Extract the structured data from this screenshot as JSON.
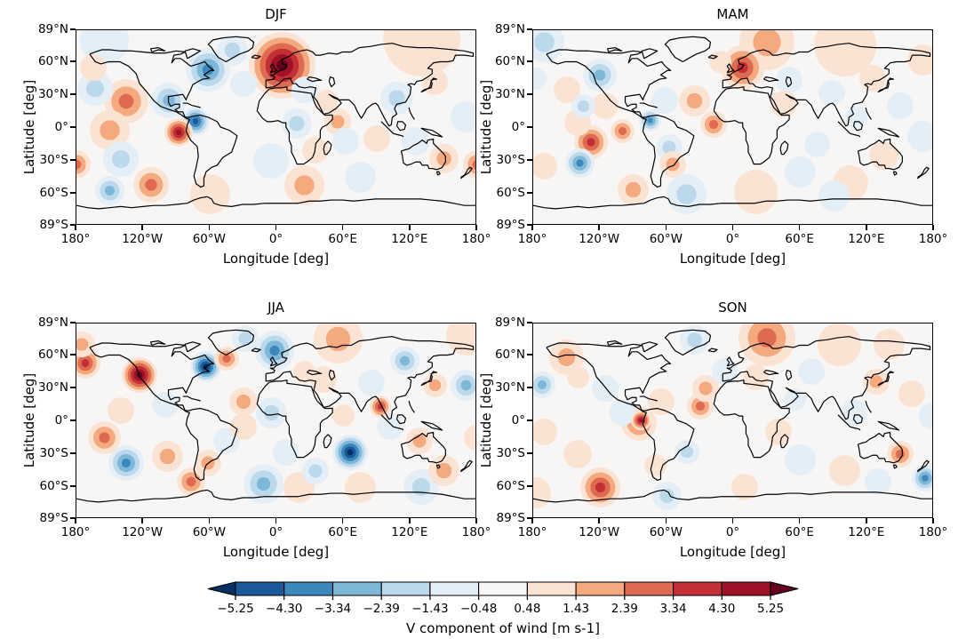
{
  "figure": {
    "panels": [
      {
        "title": "DJF"
      },
      {
        "title": "MAM"
      },
      {
        "title": "JJA"
      },
      {
        "title": "SON"
      }
    ],
    "xlabel": "Longitude [deg]",
    "ylabel": "Latitude [deg]",
    "lon_tick_labels": [
      "180°",
      "120°W",
      "60°W",
      "0°",
      "60°E",
      "120°E",
      "180°"
    ],
    "lat_tick_labels": [
      "89°N",
      "60°N",
      "30°N",
      "0°",
      "30°S",
      "60°S",
      "89°S"
    ],
    "colorbar": {
      "label": "V component of wind [m s-1]",
      "tick_labels": [
        "−5.25",
        "−4.30",
        "−3.34",
        "−2.39",
        "−1.43",
        "−0.48",
        "0.48",
        "1.43",
        "2.39",
        "3.34",
        "4.30",
        "5.25"
      ]
    }
  },
  "chart_data": {
    "type": "heatmap",
    "subtype": "filled-contour world maps, 2x2 seasonal panels, equirectangular (lat-lon) projection with coastlines",
    "xlabel": "Longitude [deg]",
    "ylabel": "Latitude [deg]",
    "xlim": [
      -180,
      180
    ],
    "ylim": [
      -89,
      89
    ],
    "x_ticks_deg": [
      -180,
      -120,
      -60,
      0,
      60,
      120,
      180
    ],
    "y_ticks_deg": [
      89,
      60,
      30,
      0,
      -30,
      -60,
      -89
    ],
    "colorbar": {
      "label": "V component of wind [m s-1]",
      "units": "m s-1",
      "orientation": "horizontal",
      "extend": "both",
      "tick_values": [
        -5.25,
        -4.3,
        -3.34,
        -2.39,
        -1.43,
        -0.48,
        0.48,
        1.43,
        2.39,
        3.34,
        4.3,
        5.25
      ],
      "segment_colors": [
        "#1a5a9b",
        "#3c88bd",
        "#7eb8d9",
        "#bcd9eb",
        "#e3eef6",
        "#f8f6f4",
        "#fbe3d4",
        "#f5a97f",
        "#dd6a51",
        "#c22f35",
        "#9e1127"
      ],
      "extend_low_color": "#053061",
      "extend_high_color": "#67001f"
    },
    "colors": {
      "extend_low": "#053061",
      "blues": [
        "#e3eef6",
        "#bcd9eb",
        "#7eb8d9",
        "#3c88bd",
        "#1a5a9b"
      ],
      "white": "#f8f6f4",
      "reds": [
        "#fbe3d4",
        "#f5a97f",
        "#dd6a51",
        "#c22f35",
        "#9e1127"
      ],
      "extend_high": "#67001f",
      "coastline": "#000000"
    },
    "anomaly_encoding": "each anomaly is [lon_deg, lat_deg, radius_deg, level]; level sign: positive = red (southerly wind anomaly), negative = blue (northerly); |level| 1..6 = colorbar band strength from ±0.48 out past ±5.25 m s-1",
    "panels": [
      {
        "season": "DJF",
        "anomalies": [
          [
            5,
            57,
            30,
            6
          ],
          [
            -62,
            53,
            20,
            -4
          ],
          [
            -40,
            71,
            14,
            -2
          ],
          [
            -97,
            25,
            16,
            -3
          ],
          [
            -73,
            6,
            13,
            -5
          ],
          [
            -88,
            -4,
            13,
            5
          ],
          [
            -135,
            24,
            20,
            3
          ],
          [
            -163,
            36,
            16,
            -2
          ],
          [
            -150,
            -2,
            18,
            2
          ],
          [
            -140,
            -28,
            16,
            -2
          ],
          [
            -113,
            -52,
            16,
            3
          ],
          [
            -150,
            -57,
            13,
            -3
          ],
          [
            -60,
            -60,
            18,
            1
          ],
          [
            25,
            -52,
            18,
            2
          ],
          [
            -5,
            -30,
            16,
            -1
          ],
          [
            18,
            4,
            14,
            -2
          ],
          [
            55,
            6,
            12,
            2
          ],
          [
            62,
            -12,
            12,
            -1
          ],
          [
            108,
            27,
            15,
            -2
          ],
          [
            90,
            -10,
            12,
            1
          ],
          [
            125,
            -12,
            13,
            -1
          ],
          [
            150,
            -28,
            13,
            2
          ],
          [
            180,
            -33,
            13,
            3
          ],
          [
            -180,
            -33,
            13,
            3
          ],
          [
            142,
            42,
            12,
            1
          ],
          [
            130,
            82,
            35,
            1
          ],
          [
            -155,
            80,
            22,
            -1
          ],
          [
            35,
            -20,
            12,
            1
          ],
          [
            75,
            -45,
            14,
            -1
          ],
          [
            -30,
            40,
            12,
            -1
          ],
          [
            25,
            35,
            12,
            -1
          ],
          [
            45,
            25,
            10,
            1
          ],
          [
            170,
            10,
            14,
            -1
          ],
          [
            -165,
            55,
            12,
            1
          ]
        ]
      },
      {
        "season": "MAM",
        "anomalies": [
          [
            8,
            55,
            20,
            4
          ],
          [
            -120,
            48,
            15,
            -3
          ],
          [
            -75,
            7,
            10,
            -4
          ],
          [
            -18,
            3,
            12,
            3
          ],
          [
            -128,
            -13,
            15,
            4
          ],
          [
            -138,
            -32,
            13,
            -4
          ],
          [
            -100,
            -3,
            11,
            3
          ],
          [
            -58,
            -18,
            12,
            -2
          ],
          [
            -55,
            -33,
            12,
            2
          ],
          [
            -42,
            -60,
            18,
            -2
          ],
          [
            -90,
            -56,
            14,
            2
          ],
          [
            30,
            78,
            25,
            2
          ],
          [
            100,
            75,
            28,
            1
          ],
          [
            -170,
            78,
            18,
            -2
          ],
          [
            50,
            44,
            12,
            -1
          ],
          [
            45,
            22,
            12,
            1
          ],
          [
            88,
            32,
            12,
            -1
          ],
          [
            125,
            45,
            12,
            1
          ],
          [
            -35,
            25,
            14,
            2
          ],
          [
            -62,
            25,
            12,
            -1
          ],
          [
            135,
            -25,
            13,
            1
          ],
          [
            60,
            -40,
            14,
            -1
          ],
          [
            20,
            -58,
            20,
            1
          ],
          [
            170,
            -8,
            14,
            -1
          ],
          [
            150,
            20,
            12,
            -1
          ],
          [
            105,
            -50,
            16,
            1
          ],
          [
            -150,
            35,
            12,
            1
          ],
          [
            -178,
            45,
            10,
            -1
          ],
          [
            75,
            -15,
            12,
            -1
          ],
          [
            170,
            62,
            14,
            1
          ],
          [
            -12,
            60,
            10,
            1
          ],
          [
            110,
            10,
            10,
            -1
          ],
          [
            -115,
            20,
            12,
            1
          ],
          [
            -140,
            5,
            12,
            1
          ],
          [
            -170,
            -35,
            12,
            1
          ],
          [
            90,
            -62,
            14,
            -1
          ],
          [
            -135,
            20,
            11,
            -2
          ]
        ]
      },
      {
        "season": "JJA",
        "anomalies": [
          [
            -123,
            42,
            16,
            6
          ],
          [
            -64,
            50,
            14,
            -6
          ],
          [
            -172,
            53,
            14,
            4
          ],
          [
            -45,
            57,
            11,
            3
          ],
          [
            -2,
            64,
            18,
            -4
          ],
          [
            66,
            -28,
            16,
            -6
          ],
          [
            -135,
            -38,
            16,
            -4
          ],
          [
            -12,
            -57,
            18,
            -3
          ],
          [
            93,
            13,
            10,
            4
          ],
          [
            -155,
            -15,
            15,
            3
          ],
          [
            -98,
            -32,
            14,
            2
          ],
          [
            -77,
            -55,
            13,
            3
          ],
          [
            55,
            75,
            22,
            2
          ],
          [
            170,
            78,
            18,
            1
          ],
          [
            115,
            55,
            13,
            -3
          ],
          [
            170,
            33,
            14,
            -3
          ],
          [
            142,
            33,
            11,
            2
          ],
          [
            85,
            35,
            12,
            -1
          ],
          [
            42,
            38,
            12,
            1
          ],
          [
            -5,
            8,
            14,
            -2
          ],
          [
            -30,
            18,
            13,
            2
          ],
          [
            -45,
            -18,
            12,
            -1
          ],
          [
            -62,
            -38,
            12,
            2
          ],
          [
            8,
            -28,
            12,
            -1
          ],
          [
            102,
            -5,
            12,
            -1
          ],
          [
            128,
            -18,
            12,
            2
          ],
          [
            150,
            -45,
            14,
            2
          ],
          [
            130,
            -60,
            16,
            -2
          ],
          [
            -28,
            75,
            12,
            -2
          ],
          [
            25,
            45,
            10,
            1
          ],
          [
            180,
            -15,
            12,
            1
          ],
          [
            60,
            5,
            10,
            1
          ],
          [
            35,
            -45,
            12,
            -2
          ],
          [
            -100,
            15,
            12,
            -1
          ],
          [
            -140,
            10,
            12,
            1
          ],
          [
            -175,
            70,
            12,
            2
          ],
          [
            -30,
            -5,
            12,
            1
          ],
          [
            20,
            -60,
            14,
            1
          ],
          [
            75,
            -60,
            14,
            1
          ]
        ]
      },
      {
        "season": "SON",
        "anomalies": [
          [
            -83,
            1,
            9,
            5
          ],
          [
            -85,
            -2,
            16,
            3
          ],
          [
            -120,
            -60,
            18,
            4
          ],
          [
            -172,
            33,
            12,
            -3
          ],
          [
            -42,
            -28,
            11,
            -2
          ],
          [
            -30,
            14,
            12,
            3
          ],
          [
            -25,
            30,
            12,
            2
          ],
          [
            30,
            76,
            26,
            3
          ],
          [
            95,
            70,
            20,
            1
          ],
          [
            -35,
            74,
            13,
            -2
          ],
          [
            -150,
            58,
            16,
            2
          ],
          [
            -8,
            45,
            12,
            -1
          ],
          [
            20,
            40,
            12,
            1
          ],
          [
            60,
            -35,
            14,
            -1
          ],
          [
            150,
            -30,
            12,
            3
          ],
          [
            172,
            -52,
            12,
            -4
          ],
          [
            -65,
            18,
            12,
            1
          ],
          [
            -100,
            8,
            12,
            -1
          ],
          [
            -140,
            -30,
            13,
            1
          ],
          [
            -60,
            -68,
            13,
            -2
          ],
          [
            40,
            -10,
            12,
            1
          ],
          [
            108,
            8,
            12,
            -1
          ],
          [
            128,
            36,
            12,
            2
          ],
          [
            178,
            5,
            12,
            -1
          ],
          [
            70,
            45,
            12,
            -1
          ],
          [
            100,
            -45,
            14,
            1
          ],
          [
            -170,
            -10,
            12,
            1
          ],
          [
            140,
            70,
            14,
            1
          ],
          [
            -115,
            30,
            12,
            -1
          ],
          [
            -140,
            40,
            10,
            1
          ],
          [
            55,
            20,
            10,
            -1
          ],
          [
            160,
            25,
            12,
            1
          ],
          [
            -178,
            -65,
            14,
            1
          ],
          [
            -70,
            -40,
            10,
            1
          ],
          [
            10,
            -60,
            12,
            1
          ],
          [
            130,
            -55,
            12,
            -1
          ]
        ]
      }
    ]
  }
}
